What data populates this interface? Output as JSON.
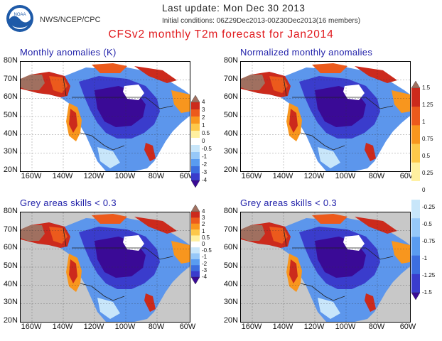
{
  "header": {
    "org": "NWS/NCEP/CPC",
    "logo_text": "NOAA",
    "last_update": "Last update: Mon Dec 30 2013",
    "initial_conditions": "Initial conditions: 06Z29Dec2013-00Z30Dec2013(16 members)",
    "title": "CFSv2 monthly T2m forecast for Jan2014"
  },
  "panels": [
    {
      "title": "Monthly anomalies (K)"
    },
    {
      "title": "Normalized monthly anomalies"
    },
    {
      "title": "Grey areas skills < 0.3"
    },
    {
      "title": "Grey areas skills < 0.3"
    }
  ],
  "axes": {
    "lat_labels": [
      "80N",
      "70N",
      "60N",
      "50N",
      "40N",
      "30N",
      "20N"
    ],
    "lon_labels": [
      "160W",
      "140W",
      "120W",
      "100W",
      "80W",
      "60W"
    ]
  },
  "colorbars": {
    "anomaly_ticks": [
      "4",
      "3",
      "2",
      "1",
      "0.5",
      "0",
      "-0.5",
      "-1",
      "-2",
      "-3",
      "-4"
    ],
    "normalized_ticks": [
      "1.5",
      "1.25",
      "1",
      "0.75",
      "0.5",
      "0.25",
      "0",
      "-0.25",
      "-0.5",
      "-0.75",
      "-1",
      "-1.25",
      "-1.5"
    ],
    "colors": [
      "#3a0a96",
      "#3a3ccc",
      "#3c6edf",
      "#5a9cf0",
      "#96c8f8",
      "#c8e6fa",
      "#ffffff",
      "#fff0a0",
      "#fdc84a",
      "#f8961e",
      "#ec5a1c",
      "#cc2a1c",
      "#a07060"
    ]
  }
}
